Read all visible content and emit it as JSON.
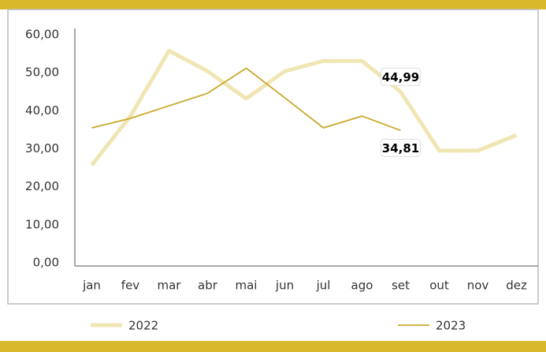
{
  "chart_data": {
    "type": "line",
    "categories": [
      "jan",
      "fev",
      "mar",
      "abr",
      "mai",
      "jun",
      "jul",
      "ago",
      "set",
      "out",
      "nov",
      "dez"
    ],
    "series": [
      {
        "name": "2022",
        "color": "#f0e6b4",
        "values": [
          25.7,
          38.6,
          55.8,
          50.4,
          43.2,
          50.4,
          53.1,
          53.1,
          44.99,
          29.5,
          29.5,
          33.6
        ],
        "value_labels": [
          null,
          null,
          null,
          null,
          null,
          null,
          null,
          null,
          "44,99",
          null,
          null,
          null
        ]
      },
      {
        "name": "2023",
        "color": "#c9a92a",
        "values": [
          35.5,
          38.0,
          41.3,
          44.6,
          51.2,
          43.4,
          35.5,
          38.6,
          34.81,
          null,
          null,
          null
        ],
        "value_labels": [
          null,
          null,
          null,
          null,
          null,
          null,
          null,
          null,
          "34,81",
          null,
          null,
          null
        ]
      }
    ],
    "ylim": [
      0,
      60
    ],
    "yticks": [
      {
        "value": 0,
        "label": "0,00"
      },
      {
        "value": 10,
        "label": "10,00"
      },
      {
        "value": 20,
        "label": "20,00"
      },
      {
        "value": 30,
        "label": "30,00"
      },
      {
        "value": 40,
        "label": "40,00"
      },
      {
        "value": 50,
        "label": "50,00"
      },
      {
        "value": 60,
        "label": "60,00"
      }
    ],
    "grid": false,
    "legend": "bottom"
  }
}
